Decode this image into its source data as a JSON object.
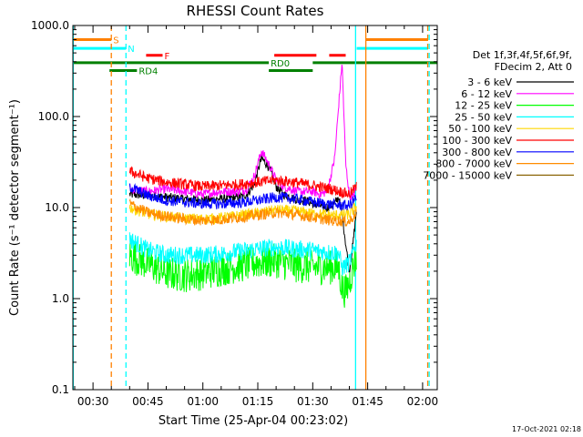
{
  "chart_data": {
    "type": "line",
    "title": "RHESSI Count Rates",
    "xlabel": "Start Time (25-Apr-04 00:23:02)",
    "ylabel": "Count Rate (s⁻¹ detector segment⁻¹)",
    "yscale": "log",
    "ylim": [
      0.1,
      1000
    ],
    "xlim_minutes": [
      24.5,
      124
    ],
    "x_ticks": [
      "00:30",
      "00:45",
      "01:00",
      "01:15",
      "01:30",
      "01:45",
      "02:00"
    ],
    "x_tick_minutes": [
      30,
      45,
      60,
      75,
      90,
      105,
      120
    ],
    "y_ticks": [
      "0.1",
      "1.0",
      "10.0",
      "100.0",
      "1000.0"
    ],
    "y_tick_values": [
      0.1,
      1,
      10,
      100,
      1000
    ],
    "legend_title": [
      "Det 1f,3f,4f,5f,6f,9f,",
      "FDecim 2, Att 0"
    ],
    "legend_position": "right",
    "series": [
      {
        "name": "3 - 6 keV",
        "color": "#000000",
        "x": [
          40,
          45,
          50,
          55,
          60,
          65,
          70,
          72,
          74,
          76,
          78,
          80,
          82,
          84,
          86,
          88,
          90,
          92,
          94,
          96,
          97,
          98,
          99,
          100,
          101,
          102
        ],
        "y": [
          14,
          13.5,
          13,
          12.5,
          12,
          12.5,
          13,
          14,
          18,
          35,
          28,
          17,
          14,
          13,
          12,
          12,
          11,
          10.5,
          10,
          11,
          13,
          9,
          4,
          2,
          4,
          10
        ]
      },
      {
        "name": "6 - 12 keV",
        "color": "#ff00ff",
        "x": [
          40,
          45,
          50,
          55,
          60,
          65,
          70,
          72,
          74,
          76,
          78,
          80,
          82,
          84,
          86,
          88,
          90,
          92,
          94,
          96,
          97,
          98,
          99,
          100,
          101,
          102
        ],
        "y": [
          16,
          15,
          16,
          15,
          14,
          15,
          15,
          16,
          22,
          42,
          30,
          20,
          17,
          16,
          15,
          15,
          15,
          14,
          15,
          35,
          120,
          400,
          30,
          14,
          13,
          17
        ]
      },
      {
        "name": "12 - 25 keV",
        "color": "#00ff00",
        "x": [
          40,
          45,
          50,
          55,
          60,
          65,
          70,
          75,
          80,
          85,
          90,
          95,
          97,
          98,
          99,
          100,
          101,
          102
        ],
        "y": [
          3,
          2.4,
          1.9,
          1.8,
          1.9,
          2.1,
          2.3,
          2.5,
          2.6,
          2.3,
          2.2,
          2.2,
          2.2,
          1.3,
          1.2,
          1.5,
          2.2,
          3
        ]
      },
      {
        "name": "25 - 50 keV",
        "color": "#00ffff",
        "x": [
          40,
          45,
          50,
          55,
          60,
          65,
          70,
          75,
          80,
          85,
          90,
          95,
          97,
          98,
          99,
          100,
          101,
          102
        ],
        "y": [
          4.5,
          3.4,
          3,
          3,
          3,
          3.1,
          3.3,
          3.5,
          3.7,
          3.5,
          3.4,
          3.2,
          3.2,
          2.2,
          2.3,
          2.5,
          3.2,
          4.2
        ]
      },
      {
        "name": "50 - 100 keV",
        "color": "#ffd700",
        "x": [
          40,
          45,
          50,
          55,
          60,
          65,
          70,
          75,
          80,
          85,
          90,
          95,
          100,
          102
        ],
        "y": [
          10,
          8.5,
          8,
          7.6,
          7.5,
          7.7,
          8.2,
          8.7,
          9.4,
          9.2,
          8.6,
          8.2,
          8.4,
          10.5
        ]
      },
      {
        "name": "100 - 300 keV",
        "color": "#ff0000",
        "x": [
          40,
          45,
          50,
          55,
          60,
          65,
          70,
          75,
          80,
          85,
          90,
          95,
          100,
          102
        ],
        "y": [
          25,
          21,
          19,
          18,
          17,
          17.5,
          18,
          19,
          20,
          19,
          17.5,
          16,
          14,
          17
        ]
      },
      {
        "name": "300 - 800 keV",
        "color": "#0000ff",
        "x": [
          40,
          45,
          50,
          55,
          60,
          65,
          70,
          75,
          80,
          85,
          90,
          95,
          100,
          102
        ],
        "y": [
          17,
          13.5,
          12,
          11.5,
          11,
          11,
          11.3,
          12,
          13,
          12.5,
          11.5,
          10.8,
          10.5,
          13
        ]
      },
      {
        "name": "800 - 7000 keV",
        "color": "#ff8c00",
        "x": [
          40,
          45,
          50,
          55,
          60,
          65,
          70,
          75,
          80,
          85,
          90,
          95,
          100,
          102
        ],
        "y": [
          11,
          8.8,
          8,
          7.5,
          7.2,
          7.4,
          7.8,
          8.3,
          8.8,
          8.4,
          7.8,
          7.2,
          7,
          9
        ]
      },
      {
        "name": "7000 - 15000 keV",
        "color": "#8b6508",
        "x": [],
        "y": []
      }
    ],
    "state_bars": [
      {
        "label": "S",
        "color": "#ff8000",
        "value": 700,
        "segments": [
          [
            24.5,
            35
          ],
          [
            104.5,
            121.5
          ]
        ]
      },
      {
        "label": "N",
        "color": "#00ffff",
        "value": 560,
        "segments": [
          [
            24.5,
            39
          ],
          [
            102,
            121.5
          ]
        ]
      },
      {
        "label": "F",
        "color": "#ff0000",
        "value": 470,
        "segments": [
          [
            44.5,
            49
          ],
          [
            79.5,
            91
          ],
          [
            94.5,
            99
          ]
        ]
      },
      {
        "label": "RD0",
        "color": "#008000",
        "value": 390,
        "segments": [
          [
            24.5,
            78
          ],
          [
            90,
            124
          ]
        ]
      },
      {
        "label": "RD4",
        "color": "#008000",
        "value": 320,
        "segments": [
          [
            34.5,
            42
          ],
          [
            78,
            90
          ]
        ]
      }
    ],
    "vertical_markers": [
      {
        "color": "#00ffff",
        "x": 24.6,
        "style": "solid"
      },
      {
        "color": "#ff8000",
        "x": 35,
        "style": "dashed"
      },
      {
        "color": "#00ffff",
        "x": 39,
        "style": "dashed"
      },
      {
        "color": "#00ffff",
        "x": 101.7,
        "style": "solid"
      },
      {
        "color": "#ff8000",
        "x": 104.5,
        "style": "solid"
      },
      {
        "color": "#ff8000",
        "x": 121.4,
        "style": "dashed"
      },
      {
        "color": "#00ffff",
        "x": 121.8,
        "style": "dashed"
      }
    ]
  },
  "timestamp": "17-Oct-2021 02:18"
}
